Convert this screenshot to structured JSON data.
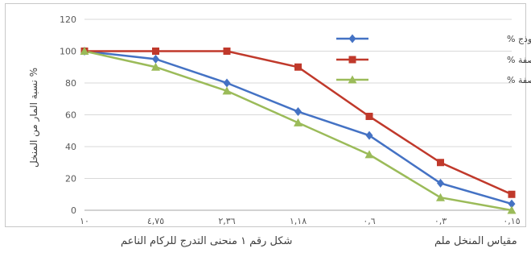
{
  "chart_data": {
    "type": "line",
    "categories": [
      "١٠",
      "٤,٧٥",
      "٢,٣٦",
      "١,١٨",
      "٠,٦",
      "٠,٣",
      "٠,١٥"
    ],
    "series": [
      {
        "name": "نسبة المار للنموذج %",
        "color": "#4472c4",
        "marker": "diamond",
        "values": [
          100,
          95,
          80,
          62,
          47,
          17,
          4
        ]
      },
      {
        "name": "المار الحد الأعلى للمواصفة %",
        "color": "#c0392b",
        "marker": "square",
        "values": [
          100,
          100,
          100,
          90,
          59,
          30,
          10
        ]
      },
      {
        "name": "المار الحد الأدنى للمواصفة %",
        "color": "#9bbb59",
        "marker": "triangle",
        "values": [
          100,
          90,
          75,
          55,
          35,
          8,
          0
        ]
      }
    ],
    "yticks": [
      0,
      20,
      40,
      60,
      80,
      100,
      120
    ],
    "ylim": [
      0,
      120
    ],
    "ylabel": "نسبة المار من المنخل %",
    "grid": true,
    "legend_position": "top-right"
  },
  "caption": {
    "left": "شكل رقم ١ منحنى التدرج للركام الناعم",
    "right": "مقياس المنخل ملم"
  }
}
